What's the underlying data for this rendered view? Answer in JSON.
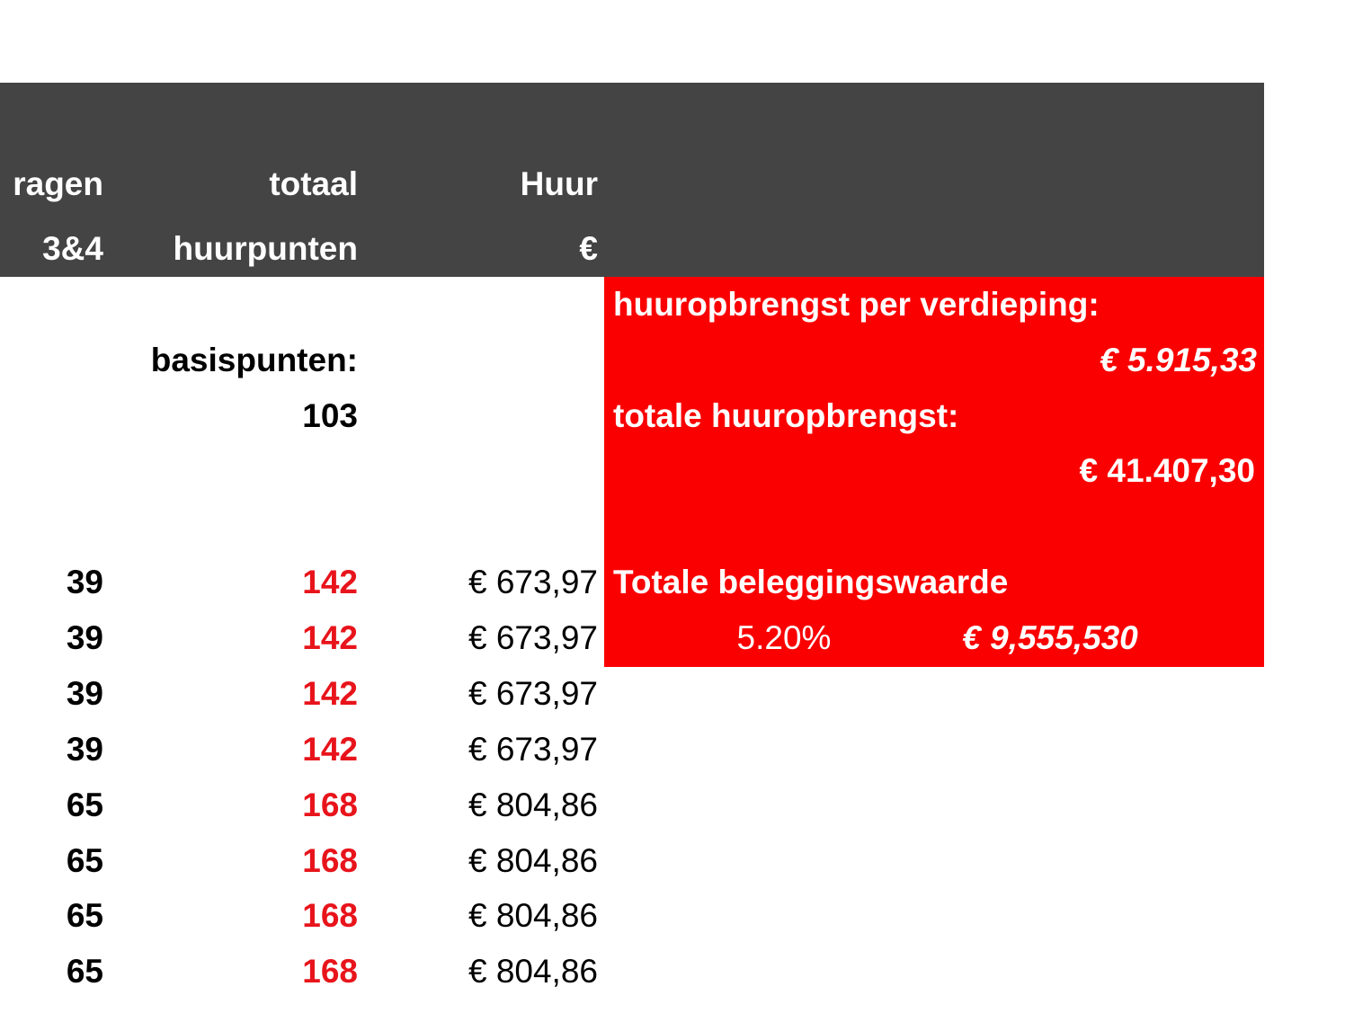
{
  "header": {
    "columns": [
      {
        "line1": "ragen",
        "line2": "3&4"
      },
      {
        "line1": "totaal",
        "line2": "huurpunten"
      },
      {
        "line1": "Huur",
        "line2": "€"
      }
    ]
  },
  "basis": {
    "label": "basispunten:",
    "value": "103"
  },
  "table": {
    "rows": [
      [
        "39",
        "142",
        "€ 673,97"
      ],
      [
        "39",
        "142",
        "€ 673,97"
      ],
      [
        "39",
        "142",
        "€ 673,97"
      ],
      [
        "39",
        "142",
        "€ 673,97"
      ],
      [
        "65",
        "168",
        "€ 804,86"
      ],
      [
        "65",
        "168",
        "€ 804,86"
      ],
      [
        "65",
        "168",
        "€ 804,86"
      ],
      [
        "65",
        "168",
        "€ 804,86"
      ]
    ]
  },
  "summary": {
    "per_floor_label": "huuropbrengst per verdieping:",
    "per_floor_value": "€ 5.915,33",
    "total_label": "totale huuropbrengst:",
    "total_value": "€ 41.407,30",
    "investment_label": "Totale beleggingswaarde",
    "yield": "5.20%",
    "investment_value": "€ 9,555,530"
  }
}
